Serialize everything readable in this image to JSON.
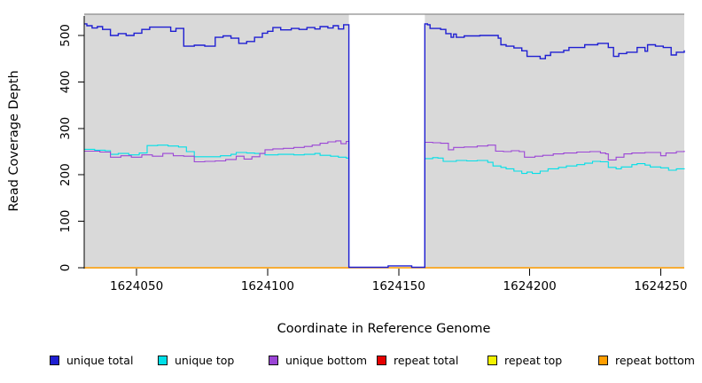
{
  "chart_data": {
    "type": "line",
    "title": "",
    "xlabel": "Coordinate in Reference Genome",
    "ylabel": "Read Coverage Depth",
    "x_range": [
      1624030,
      1624259
    ],
    "y_range": [
      0,
      548
    ],
    "x_ticks": [
      1624050,
      1624100,
      1624150,
      1624200,
      1624250
    ],
    "y_ticks": [
      0,
      100,
      200,
      300,
      400,
      500
    ],
    "grid": "off",
    "legend_position": "bottom",
    "plot_background": "#d9d9d9",
    "plot_top_border_color": "#8c8c8c",
    "axis_color": "#000000",
    "gap_region": {
      "start": 1624131,
      "end": 1624160,
      "fill": "#ffffff"
    },
    "series": [
      {
        "name": "unique total",
        "color": "#1f1fd2",
        "width": 1.4,
        "points": [
          [
            1624030,
            525
          ],
          [
            1624031,
            521
          ],
          [
            1624033,
            516
          ],
          [
            1624035,
            519
          ],
          [
            1624037,
            513
          ],
          [
            1624040,
            500
          ],
          [
            1624043,
            504
          ],
          [
            1624046,
            500
          ],
          [
            1624049,
            505
          ],
          [
            1624052,
            513
          ],
          [
            1624055,
            518
          ],
          [
            1624061,
            518
          ],
          [
            1624063,
            509
          ],
          [
            1624065,
            515
          ],
          [
            1624068,
            477
          ],
          [
            1624072,
            479
          ],
          [
            1624076,
            477
          ],
          [
            1624080,
            496
          ],
          [
            1624083,
            499
          ],
          [
            1624086,
            494
          ],
          [
            1624089,
            483
          ],
          [
            1624092,
            487
          ],
          [
            1624095,
            496
          ],
          [
            1624098,
            505
          ],
          [
            1624100,
            509
          ],
          [
            1624102,
            517
          ],
          [
            1624105,
            512
          ],
          [
            1624109,
            515
          ],
          [
            1624112,
            513
          ],
          [
            1624115,
            517
          ],
          [
            1624118,
            514
          ],
          [
            1624120,
            519
          ],
          [
            1624123,
            516
          ],
          [
            1624125,
            521
          ],
          [
            1624127,
            514
          ],
          [
            1624129,
            523
          ],
          [
            1624131,
            1
          ],
          [
            1624146,
            4
          ],
          [
            1624155,
            1
          ],
          [
            1624160,
            525
          ],
          [
            1624161,
            523
          ],
          [
            1624162,
            515
          ],
          [
            1624166,
            513
          ],
          [
            1624168,
            504
          ],
          [
            1624170,
            496
          ],
          [
            1624171,
            503
          ],
          [
            1624172,
            496
          ],
          [
            1624175,
            499
          ],
          [
            1624181,
            500
          ],
          [
            1624186,
            500
          ],
          [
            1624188,
            494
          ],
          [
            1624189,
            480
          ],
          [
            1624191,
            477
          ],
          [
            1624194,
            473
          ],
          [
            1624197,
            467
          ],
          [
            1624199,
            455
          ],
          [
            1624204,
            450
          ],
          [
            1624206,
            457
          ],
          [
            1624208,
            464
          ],
          [
            1624213,
            468
          ],
          [
            1624215,
            474
          ],
          [
            1624221,
            480
          ],
          [
            1624226,
            483
          ],
          [
            1624230,
            474
          ],
          [
            1624232,
            455
          ],
          [
            1624234,
            461
          ],
          [
            1624237,
            464
          ],
          [
            1624241,
            474
          ],
          [
            1624244,
            466
          ],
          [
            1624245,
            480
          ],
          [
            1624248,
            477
          ],
          [
            1624251,
            474
          ],
          [
            1624254,
            458
          ],
          [
            1624256,
            464
          ],
          [
            1624259,
            468
          ]
        ]
      },
      {
        "name": "unique top",
        "color": "#00dfe8",
        "width": 1.1,
        "points": [
          [
            1624030,
            255
          ],
          [
            1624034,
            253
          ],
          [
            1624038,
            252
          ],
          [
            1624040,
            244
          ],
          [
            1624043,
            246
          ],
          [
            1624047,
            243
          ],
          [
            1624051,
            247
          ],
          [
            1624054,
            263
          ],
          [
            1624058,
            264
          ],
          [
            1624062,
            262
          ],
          [
            1624066,
            260
          ],
          [
            1624069,
            250
          ],
          [
            1624072,
            239
          ],
          [
            1624078,
            239
          ],
          [
            1624082,
            241
          ],
          [
            1624086,
            244
          ],
          [
            1624088,
            248
          ],
          [
            1624092,
            247
          ],
          [
            1624095,
            246
          ],
          [
            1624099,
            243
          ],
          [
            1624104,
            244
          ],
          [
            1624110,
            243
          ],
          [
            1624114,
            244
          ],
          [
            1624118,
            246
          ],
          [
            1624120,
            242
          ],
          [
            1624124,
            240
          ],
          [
            1624127,
            238
          ],
          [
            1624130,
            236
          ],
          [
            1624131,
            0
          ],
          [
            1624160,
            235
          ],
          [
            1624163,
            237
          ],
          [
            1624165,
            236
          ],
          [
            1624167,
            229
          ],
          [
            1624172,
            231
          ],
          [
            1624176,
            230
          ],
          [
            1624180,
            231
          ],
          [
            1624184,
            227
          ],
          [
            1624186,
            219
          ],
          [
            1624189,
            216
          ],
          [
            1624191,
            213
          ],
          [
            1624194,
            208
          ],
          [
            1624197,
            203
          ],
          [
            1624199,
            206
          ],
          [
            1624201,
            203
          ],
          [
            1624204,
            208
          ],
          [
            1624207,
            213
          ],
          [
            1624211,
            216
          ],
          [
            1624214,
            219
          ],
          [
            1624218,
            222
          ],
          [
            1624221,
            225
          ],
          [
            1624224,
            229
          ],
          [
            1624227,
            228
          ],
          [
            1624230,
            216
          ],
          [
            1624233,
            213
          ],
          [
            1624235,
            217
          ],
          [
            1624239,
            222
          ],
          [
            1624241,
            224
          ],
          [
            1624244,
            221
          ],
          [
            1624246,
            217
          ],
          [
            1624250,
            215
          ],
          [
            1624253,
            210
          ],
          [
            1624256,
            213
          ],
          [
            1624259,
            214
          ]
        ]
      },
      {
        "name": "unique bottom",
        "color": "#9b45d6",
        "width": 1.1,
        "points": [
          [
            1624030,
            251
          ],
          [
            1624036,
            249
          ],
          [
            1624040,
            238
          ],
          [
            1624044,
            241
          ],
          [
            1624048,
            238
          ],
          [
            1624052,
            243
          ],
          [
            1624056,
            240
          ],
          [
            1624060,
            246
          ],
          [
            1624064,
            241
          ],
          [
            1624068,
            240
          ],
          [
            1624072,
            228
          ],
          [
            1624076,
            229
          ],
          [
            1624080,
            230
          ],
          [
            1624084,
            233
          ],
          [
            1624088,
            240
          ],
          [
            1624091,
            234
          ],
          [
            1624094,
            239
          ],
          [
            1624097,
            246
          ],
          [
            1624099,
            254
          ],
          [
            1624102,
            256
          ],
          [
            1624106,
            257
          ],
          [
            1624110,
            259
          ],
          [
            1624114,
            261
          ],
          [
            1624117,
            264
          ],
          [
            1624120,
            268
          ],
          [
            1624123,
            271
          ],
          [
            1624126,
            273
          ],
          [
            1624128,
            267
          ],
          [
            1624130,
            272
          ],
          [
            1624131,
            0
          ],
          [
            1624160,
            270
          ],
          [
            1624163,
            269
          ],
          [
            1624166,
            268
          ],
          [
            1624169,
            254
          ],
          [
            1624171,
            259
          ],
          [
            1624175,
            260
          ],
          [
            1624180,
            262
          ],
          [
            1624184,
            264
          ],
          [
            1624187,
            251
          ],
          [
            1624190,
            250
          ],
          [
            1624193,
            252
          ],
          [
            1624196,
            250
          ],
          [
            1624198,
            238
          ],
          [
            1624202,
            240
          ],
          [
            1624205,
            242
          ],
          [
            1624209,
            245
          ],
          [
            1624213,
            247
          ],
          [
            1624218,
            249
          ],
          [
            1624223,
            250
          ],
          [
            1624227,
            247
          ],
          [
            1624229,
            245
          ],
          [
            1624230,
            232
          ],
          [
            1624233,
            238
          ],
          [
            1624236,
            245
          ],
          [
            1624239,
            247
          ],
          [
            1624244,
            248
          ],
          [
            1624248,
            248
          ],
          [
            1624250,
            241
          ],
          [
            1624252,
            247
          ],
          [
            1624256,
            250
          ],
          [
            1624259,
            252
          ]
        ]
      },
      {
        "name": "repeat total",
        "color": "#e60000",
        "width": 1.1,
        "points": [
          [
            1624030,
            0
          ],
          [
            1624259,
            0
          ]
        ]
      },
      {
        "name": "repeat top",
        "color": "#f2f200",
        "width": 1.1,
        "points": [
          [
            1624030,
            0
          ],
          [
            1624259,
            0
          ]
        ]
      },
      {
        "name": "repeat bottom",
        "color": "#ff9e00",
        "width": 1.4,
        "points": [
          [
            1624030,
            0
          ],
          [
            1624259,
            0
          ]
        ]
      }
    ],
    "legend_swatch_border": "#111111"
  }
}
